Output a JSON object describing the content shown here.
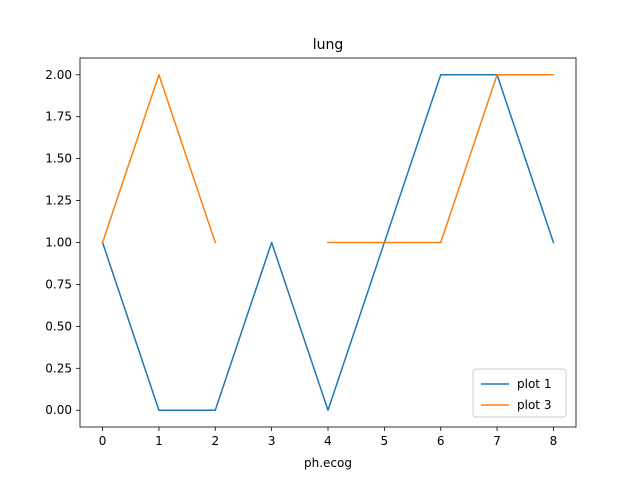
{
  "chart_data": {
    "type": "line",
    "title": "lung",
    "xlabel": "ph.ecog",
    "ylabel": "",
    "xlim": [
      -0.4,
      8.4
    ],
    "ylim": [
      -0.1,
      2.1
    ],
    "xticks": [
      0,
      1,
      2,
      3,
      4,
      5,
      6,
      7,
      8
    ],
    "xtick_labels": [
      "0",
      "1",
      "2",
      "3",
      "4",
      "5",
      "6",
      "7",
      "8"
    ],
    "yticks": [
      0,
      0.25,
      0.5,
      0.75,
      1.0,
      1.25,
      1.5,
      1.75,
      2.0
    ],
    "ytick_labels": [
      "0.00",
      "0.25",
      "0.50",
      "0.75",
      "1.00",
      "1.25",
      "1.50",
      "1.75",
      "2.00"
    ],
    "grid": false,
    "legend_position": "lower-right",
    "series": [
      {
        "name": "plot 1",
        "color": "#1f77b4",
        "x": [
          0,
          1,
          2,
          3,
          4,
          5,
          6,
          7,
          8
        ],
        "y": [
          1,
          0,
          0,
          1,
          0,
          1,
          2,
          2,
          1
        ]
      },
      {
        "name": "plot 3",
        "color": "#ff7f0e",
        "x": [
          0,
          1,
          2,
          3,
          4,
          5,
          6,
          7,
          8
        ],
        "y": [
          1,
          2,
          1,
          null,
          1,
          1,
          1,
          2,
          2
        ]
      }
    ]
  }
}
